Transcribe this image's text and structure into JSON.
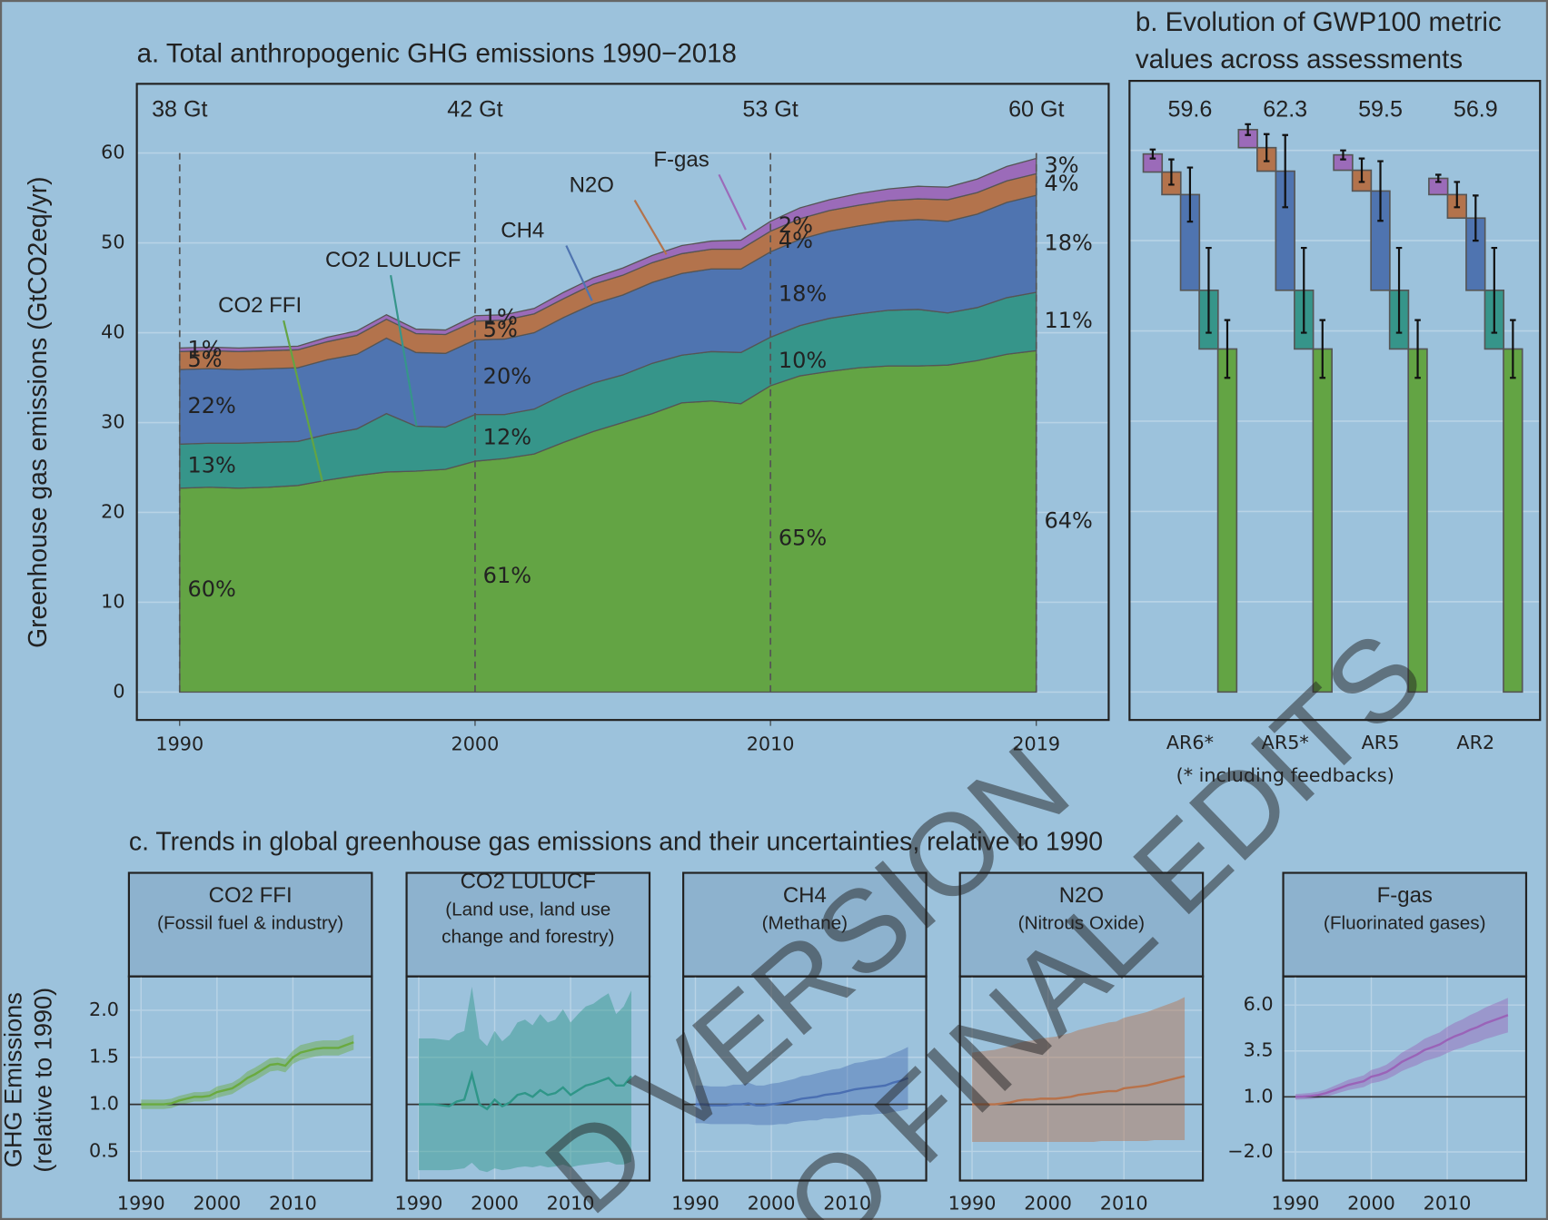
{
  "chart_data": [
    {
      "type": "area",
      "title": "a. Total anthropogenic GHG emissions 1990−2018",
      "ylabel": "Greenhouse gas emissions (GtCO2eq/yr)",
      "x": [
        1990,
        1991,
        1992,
        1993,
        1994,
        1995,
        1996,
        1997,
        1998,
        1999,
        2000,
        2001,
        2002,
        2003,
        2004,
        2005,
        2006,
        2007,
        2008,
        2009,
        2010,
        2011,
        2012,
        2013,
        2014,
        2015,
        2016,
        2017,
        2018,
        2019
      ],
      "xlim": [
        1988.55,
        2021.45
      ],
      "xticks": [
        1990,
        2000,
        2010,
        2019
      ],
      "ylim": [
        -3.1,
        67.7
      ],
      "yticks": [
        0,
        10,
        20,
        30,
        40,
        50,
        60
      ],
      "grid": true,
      "marker_years": [
        1990,
        2000,
        2010,
        2019
      ],
      "total_labels": [
        "38 Gt",
        "42 Gt",
        "53 Gt",
        "60 Gt"
      ],
      "series": [
        {
          "name": "CO2 FFI",
          "color": "#63a444",
          "values": [
            22.7,
            22.8,
            22.7,
            22.8,
            23.0,
            23.6,
            24.1,
            24.5,
            24.6,
            24.8,
            25.7,
            26.0,
            26.5,
            27.8,
            29.0,
            30.0,
            31.0,
            32.2,
            32.4,
            32.1,
            34.1,
            35.2,
            35.7,
            36.1,
            36.3,
            36.3,
            36.4,
            36.9,
            37.6,
            38.0
          ],
          "share_labels": [
            "60%",
            "61%",
            "65%",
            "64%"
          ]
        },
        {
          "name": "CO2 LULUCF",
          "color": "#36958a",
          "values": [
            4.9,
            4.9,
            5.0,
            5.0,
            4.9,
            5.1,
            5.2,
            6.5,
            5.0,
            4.7,
            5.2,
            4.9,
            5.0,
            5.3,
            5.4,
            5.3,
            5.6,
            5.3,
            5.5,
            5.7,
            5.4,
            5.6,
            5.9,
            6.0,
            6.2,
            6.3,
            5.8,
            5.9,
            6.3,
            6.5
          ],
          "share_labels": [
            "13%",
            "12%",
            "10%",
            "11%"
          ]
        },
        {
          "name": "CH4",
          "color": "#4f74b0",
          "values": [
            8.3,
            8.3,
            8.2,
            8.2,
            8.2,
            8.3,
            8.3,
            8.4,
            8.2,
            8.2,
            8.3,
            8.4,
            8.5,
            8.6,
            8.8,
            8.9,
            9.0,
            9.1,
            9.2,
            9.3,
            9.5,
            9.6,
            9.7,
            9.8,
            9.9,
            10.0,
            10.2,
            10.4,
            10.6,
            10.8
          ],
          "share_labels": [
            "22%",
            "20%",
            "18%",
            "18%"
          ]
        },
        {
          "name": "N2O",
          "color": "#b3734c",
          "values": [
            2.0,
            2.0,
            2.0,
            2.0,
            2.0,
            2.0,
            2.1,
            2.1,
            2.1,
            2.1,
            2.1,
            2.1,
            2.1,
            2.1,
            2.2,
            2.2,
            2.2,
            2.2,
            2.2,
            2.2,
            2.3,
            2.3,
            2.3,
            2.3,
            2.3,
            2.3,
            2.4,
            2.4,
            2.4,
            2.4
          ],
          "share_labels": [
            "5%",
            "5%",
            "4%",
            "4%"
          ]
        },
        {
          "name": "F-gas",
          "color": "#9b6bb9",
          "values": [
            0.4,
            0.4,
            0.4,
            0.4,
            0.4,
            0.5,
            0.5,
            0.5,
            0.5,
            0.5,
            0.6,
            0.6,
            0.6,
            0.7,
            0.7,
            0.8,
            0.8,
            0.9,
            0.9,
            1.0,
            1.1,
            1.2,
            1.2,
            1.3,
            1.3,
            1.4,
            1.4,
            1.5,
            1.6,
            1.7
          ],
          "share_labels": [
            "1%",
            "1%",
            "2%",
            "3%"
          ]
        }
      ]
    },
    {
      "type": "waterfall",
      "title": [
        "b. Evolution of GWP100 metric",
        "values across assessments"
      ],
      "categories": [
        "AR6*",
        "AR5*",
        "AR5",
        "AR2"
      ],
      "note": "(* including feedbacks)",
      "totals": [
        59.6,
        62.3,
        59.5,
        56.9
      ],
      "ylim": [
        -3.1,
        67.7
      ],
      "yticks": [
        0,
        10,
        20,
        30,
        40,
        50,
        60
      ],
      "grid": true,
      "series": [
        {
          "color": "#63a444",
          "values": [
            38.0,
            38.0,
            38.0,
            38.0
          ],
          "errors": [
            3.2,
            3.2,
            3.2,
            3.2
          ]
        },
        {
          "color": "#36958a",
          "values": [
            6.5,
            6.5,
            6.5,
            6.5
          ],
          "errors": [
            4.7,
            4.7,
            4.7,
            4.7
          ]
        },
        {
          "color": "#4f74b0",
          "values": [
            10.6,
            13.2,
            11.0,
            8.0
          ],
          "errors": [
            3.0,
            4.0,
            3.3,
            2.5
          ]
        },
        {
          "color": "#b3734c",
          "values": [
            2.5,
            2.6,
            2.3,
            2.6
          ],
          "errors": [
            1.4,
            1.5,
            1.3,
            1.4
          ]
        },
        {
          "color": "#9b6bb9",
          "values": [
            2.0,
            2.0,
            1.7,
            1.8
          ],
          "errors": [
            0.5,
            0.6,
            0.5,
            0.4
          ]
        }
      ]
    },
    {
      "type": "line",
      "section_title": "c. Trends in global greenhouse gas emissions and their uncertainties, relative to 1990",
      "ylabel": [
        "GHG Emissions",
        "(relative to 1990)"
      ],
      "title": "CO2 FFI",
      "subtitle": [
        "(Fossil fuel & industry)"
      ],
      "color": "#6aaa3f",
      "x": [
        1990,
        1991,
        1992,
        1993,
        1994,
        1995,
        1996,
        1997,
        1998,
        1999,
        2000,
        2001,
        2002,
        2003,
        2004,
        2005,
        2006,
        2007,
        2008,
        2009,
        2010,
        2011,
        2012,
        2013,
        2014,
        2015,
        2016,
        2017,
        2018
      ],
      "xlim": [
        1988.4,
        2020.4
      ],
      "xticks": [
        1990,
        2000,
        2010
      ],
      "ylim": [
        0.19,
        2.36
      ],
      "yticks": [
        0.5,
        {
          "value": 1,
          "label": "1.0"
        },
        1.5,
        {
          "value": 2,
          "label": "2.0"
        }
      ],
      "hline": 1,
      "values": [
        1.0,
        1.0,
        1.0,
        1.0,
        1.01,
        1.04,
        1.06,
        1.08,
        1.08,
        1.09,
        1.13,
        1.15,
        1.17,
        1.22,
        1.28,
        1.32,
        1.37,
        1.42,
        1.43,
        1.41,
        1.5,
        1.55,
        1.57,
        1.59,
        1.6,
        1.6,
        1.6,
        1.63,
        1.66
      ],
      "lower": [
        0.95,
        0.95,
        0.95,
        0.95,
        0.96,
        0.99,
        1.01,
        1.03,
        1.03,
        1.04,
        1.07,
        1.09,
        1.11,
        1.16,
        1.21,
        1.25,
        1.3,
        1.35,
        1.36,
        1.34,
        1.43,
        1.47,
        1.49,
        1.51,
        1.52,
        1.52,
        1.52,
        1.55,
        1.58
      ],
      "upper": [
        1.05,
        1.05,
        1.05,
        1.05,
        1.06,
        1.09,
        1.11,
        1.13,
        1.13,
        1.14,
        1.19,
        1.21,
        1.23,
        1.28,
        1.35,
        1.39,
        1.44,
        1.49,
        1.5,
        1.48,
        1.57,
        1.63,
        1.65,
        1.67,
        1.68,
        1.68,
        1.68,
        1.71,
        1.74
      ]
    },
    {
      "type": "line",
      "title": "CO2 LULUCF",
      "subtitle": [
        "(Land use, land use",
        "change and forestry)"
      ],
      "color": "#2f9688",
      "x": [
        1990,
        1991,
        1992,
        1993,
        1994,
        1995,
        1996,
        1997,
        1998,
        1999,
        2000,
        2001,
        2002,
        2003,
        2004,
        2005,
        2006,
        2007,
        2008,
        2009,
        2010,
        2011,
        2012,
        2013,
        2014,
        2015,
        2016,
        2017,
        2018
      ],
      "xlim": [
        1988.4,
        2020.4
      ],
      "xticks": [
        1990,
        2000,
        2010
      ],
      "ylim": [
        0.19,
        2.36
      ],
      "yticks": [
        0.5,
        1,
        1.5,
        2
      ],
      "shared_y": true,
      "hline": 1,
      "values": [
        1.0,
        1.0,
        1.0,
        0.99,
        0.98,
        1.03,
        1.05,
        1.32,
        1.0,
        0.95,
        1.05,
        0.98,
        1.02,
        1.1,
        1.12,
        1.08,
        1.15,
        1.1,
        1.12,
        1.18,
        1.1,
        1.15,
        1.2,
        1.22,
        1.25,
        1.28,
        1.2,
        1.2,
        1.3
      ],
      "lower": [
        0.3,
        0.3,
        0.3,
        0.3,
        0.3,
        0.31,
        0.32,
        0.38,
        0.3,
        0.28,
        0.32,
        0.3,
        0.31,
        0.33,
        0.34,
        0.33,
        0.35,
        0.33,
        0.34,
        0.36,
        0.33,
        0.35,
        0.36,
        0.37,
        0.38,
        0.39,
        0.36,
        0.36,
        0.39
      ],
      "upper": [
        1.7,
        1.7,
        1.7,
        1.69,
        1.68,
        1.75,
        1.78,
        2.25,
        1.7,
        1.62,
        1.78,
        1.67,
        1.74,
        1.87,
        1.9,
        1.84,
        1.96,
        1.87,
        1.9,
        2.01,
        1.87,
        1.96,
        2.04,
        2.07,
        2.13,
        2.18,
        1.96,
        2.04,
        2.21
      ]
    },
    {
      "type": "line",
      "title": "CH4",
      "subtitle": [
        "(Methane)"
      ],
      "color": "#4a6fb2",
      "x": [
        1990,
        1991,
        1992,
        1993,
        1994,
        1995,
        1996,
        1997,
        1998,
        1999,
        2000,
        2001,
        2002,
        2003,
        2004,
        2005,
        2006,
        2007,
        2008,
        2009,
        2010,
        2011,
        2012,
        2013,
        2014,
        2015,
        2016,
        2017,
        2018
      ],
      "xlim": [
        1988.4,
        2020.4
      ],
      "xticks": [
        1990,
        2000,
        2010
      ],
      "ylim": [
        0.19,
        2.36
      ],
      "yticks": [
        0.5,
        1,
        1.5,
        2
      ],
      "shared_y": true,
      "hline": 1,
      "values": [
        1.0,
        1.0,
        0.99,
        0.99,
        0.99,
        1.0,
        1.0,
        1.01,
        0.99,
        0.99,
        1.0,
        1.01,
        1.02,
        1.04,
        1.06,
        1.07,
        1.08,
        1.1,
        1.11,
        1.12,
        1.14,
        1.16,
        1.17,
        1.18,
        1.19,
        1.2,
        1.23,
        1.25,
        1.28
      ],
      "lower": [
        0.8,
        0.8,
        0.79,
        0.79,
        0.79,
        0.79,
        0.79,
        0.79,
        0.78,
        0.78,
        0.78,
        0.79,
        0.79,
        0.81,
        0.82,
        0.83,
        0.83,
        0.85,
        0.85,
        0.86,
        0.87,
        0.88,
        0.89,
        0.89,
        0.9,
        0.9,
        0.92,
        0.93,
        0.95
      ],
      "upper": [
        1.2,
        1.2,
        1.19,
        1.19,
        1.19,
        1.21,
        1.21,
        1.23,
        1.2,
        1.2,
        1.22,
        1.23,
        1.25,
        1.27,
        1.3,
        1.31,
        1.33,
        1.35,
        1.37,
        1.38,
        1.41,
        1.44,
        1.45,
        1.47,
        1.48,
        1.5,
        1.54,
        1.57,
        1.61
      ]
    },
    {
      "type": "line",
      "title": "N2O",
      "subtitle": [
        "(Nitrous Oxide)"
      ],
      "color": "#b8724a",
      "x": [
        1990,
        1991,
        1992,
        1993,
        1994,
        1995,
        1996,
        1997,
        1998,
        1999,
        2000,
        2001,
        2002,
        2003,
        2004,
        2005,
        2006,
        2007,
        2008,
        2009,
        2010,
        2011,
        2012,
        2013,
        2014,
        2015,
        2016,
        2017,
        2018
      ],
      "xlim": [
        1988.4,
        2020.4
      ],
      "xticks": [
        1990,
        2000,
        2010
      ],
      "ylim": [
        0.19,
        2.36
      ],
      "yticks": [
        0.5,
        1,
        1.5,
        2
      ],
      "shared_y": true,
      "hline": 1,
      "values": [
        1.0,
        1.0,
        1.0,
        1.0,
        1.01,
        1.02,
        1.04,
        1.05,
        1.05,
        1.06,
        1.06,
        1.06,
        1.07,
        1.08,
        1.1,
        1.11,
        1.12,
        1.13,
        1.14,
        1.14,
        1.17,
        1.18,
        1.19,
        1.2,
        1.22,
        1.24,
        1.26,
        1.28,
        1.3
      ],
      "lower": [
        0.6,
        0.6,
        0.6,
        0.6,
        0.6,
        0.6,
        0.6,
        0.6,
        0.6,
        0.6,
        0.6,
        0.6,
        0.6,
        0.6,
        0.6,
        0.6,
        0.6,
        0.61,
        0.61,
        0.61,
        0.61,
        0.61,
        0.61,
        0.61,
        0.62,
        0.62,
        0.62,
        0.62,
        0.62
      ],
      "upper": [
        1.55,
        1.56,
        1.57,
        1.58,
        1.6,
        1.62,
        1.65,
        1.67,
        1.68,
        1.7,
        1.71,
        1.72,
        1.74,
        1.76,
        1.79,
        1.81,
        1.83,
        1.85,
        1.87,
        1.88,
        1.92,
        1.94,
        1.96,
        1.98,
        2.01,
        2.04,
        2.07,
        2.1,
        2.14
      ]
    },
    {
      "type": "line",
      "title": "F-gas",
      "subtitle": [
        "(Fluorinated gases)"
      ],
      "color": "#9a63b8",
      "x": [
        1990,
        1991,
        1992,
        1993,
        1994,
        1995,
        1996,
        1997,
        1998,
        1999,
        2000,
        2001,
        2002,
        2003,
        2004,
        2005,
        2006,
        2007,
        2008,
        2009,
        2010,
        2011,
        2012,
        2013,
        2014,
        2015,
        2016,
        2017,
        2018
      ],
      "xlim": [
        1988.4,
        2020.4
      ],
      "xticks": [
        1990,
        2000,
        2010
      ],
      "ylim": [
        -3.56,
        7.56
      ],
      "yticks": [
        {
          "value": -2,
          "label": "−2.0"
        },
        {
          "value": 1,
          "label": "1.0"
        },
        3.5,
        {
          "value": 6,
          "label": "6.0"
        }
      ],
      "hline": 1,
      "values": [
        1.0,
        1.02,
        1.05,
        1.1,
        1.2,
        1.35,
        1.5,
        1.65,
        1.75,
        1.85,
        2.1,
        2.2,
        2.35,
        2.6,
        2.9,
        3.1,
        3.3,
        3.55,
        3.7,
        3.85,
        4.1,
        4.3,
        4.45,
        4.65,
        4.8,
        5.0,
        5.15,
        5.3,
        5.45
      ],
      "lower": [
        0.85,
        0.86,
        0.88,
        0.92,
        1.0,
        1.12,
        1.25,
        1.37,
        1.45,
        1.53,
        1.74,
        1.82,
        1.95,
        2.15,
        2.4,
        2.57,
        2.73,
        2.94,
        3.06,
        3.19,
        3.39,
        3.56,
        3.68,
        3.85,
        3.97,
        4.14,
        4.26,
        4.39,
        4.51
      ],
      "upper": [
        1.15,
        1.18,
        1.22,
        1.28,
        1.4,
        1.58,
        1.75,
        1.93,
        2.05,
        2.17,
        2.46,
        2.58,
        2.75,
        3.05,
        3.4,
        3.63,
        3.87,
        4.16,
        4.34,
        4.51,
        4.81,
        5.04,
        5.22,
        5.45,
        5.63,
        5.86,
        6.04,
        6.21,
        6.39
      ]
    }
  ],
  "watermark": [
    "D VERSION",
    "O FINAL EDITS"
  ]
}
